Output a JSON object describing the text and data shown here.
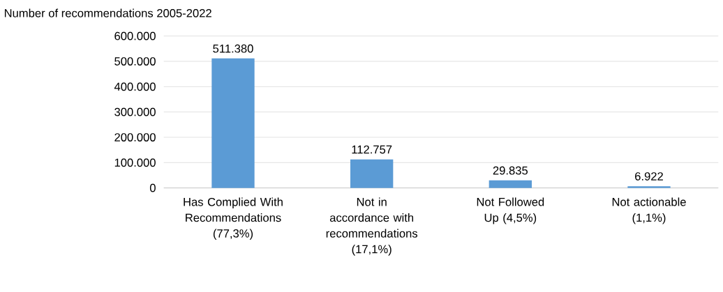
{
  "chart_data": {
    "type": "bar",
    "title": "Number of recommendations 2005-2022",
    "categories": [
      "Has Complied With Recommendations (77,3%)",
      "Not in accordance with recommendations (17,1%)",
      "Not Followed Up (4,5%)",
      "Not actionable (1,1%)"
    ],
    "values": [
      511380,
      112757,
      29835,
      6922
    ],
    "value_labels": [
      "511.380",
      "112.757",
      "29.835",
      "6.922"
    ],
    "color": "#5b9bd5",
    "ylim": [
      0,
      600000
    ],
    "yticks": [
      {
        "value": 0,
        "label": "0"
      },
      {
        "value": 100000,
        "label": "100.000"
      },
      {
        "value": 200000,
        "label": "200.000"
      },
      {
        "value": 300000,
        "label": "300.000"
      },
      {
        "value": 400000,
        "label": "400.000"
      },
      {
        "value": 500000,
        "label": "500.000"
      },
      {
        "value": 600000,
        "label": "600.000"
      }
    ],
    "grid": "y"
  }
}
